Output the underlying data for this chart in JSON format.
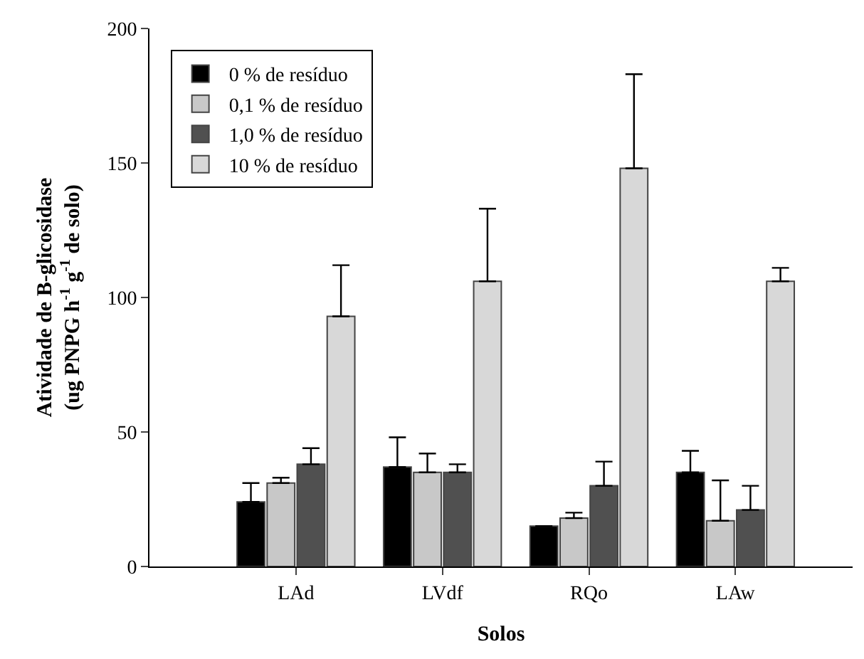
{
  "chart_data": {
    "type": "bar",
    "xlabel": "Solos",
    "ylabel": "Atividade de B-glicosidase\n(ug PNPG h$^{-1}$ g$^{-1}$ de solo)",
    "categories": [
      "LAd",
      "LVdf",
      "RQo",
      "LAw"
    ],
    "series": [
      {
        "name": "0 % de resíduo",
        "color": "#000000",
        "values": [
          24,
          37,
          15,
          35
        ],
        "errors": [
          [
            24,
            31
          ],
          [
            37,
            48
          ],
          null,
          [
            35,
            43
          ]
        ]
      },
      {
        "name": "0,1 % de resíduo",
        "color": "#c8c8c8",
        "values": [
          31,
          35,
          18,
          17
        ],
        "errors": [
          [
            31,
            33
          ],
          [
            35,
            42
          ],
          [
            18,
            20
          ],
          [
            17,
            32
          ]
        ]
      },
      {
        "name": "1,0 % de resíduo",
        "color": "#505050",
        "values": [
          38,
          35,
          30,
          21
        ],
        "errors": [
          [
            38,
            44
          ],
          [
            35,
            38
          ],
          [
            30,
            39
          ],
          [
            21,
            30
          ]
        ]
      },
      {
        "name": "10 % de resíduo",
        "color": "#d8d8d8",
        "values": [
          93,
          106,
          148,
          106
        ],
        "errors": [
          [
            93,
            112
          ],
          [
            106,
            133
          ],
          [
            148,
            183
          ],
          [
            106,
            111
          ]
        ]
      }
    ],
    "ylim": [
      0,
      200
    ],
    "yticks": [
      0,
      50,
      100,
      150,
      200
    ],
    "legend": "top left"
  }
}
